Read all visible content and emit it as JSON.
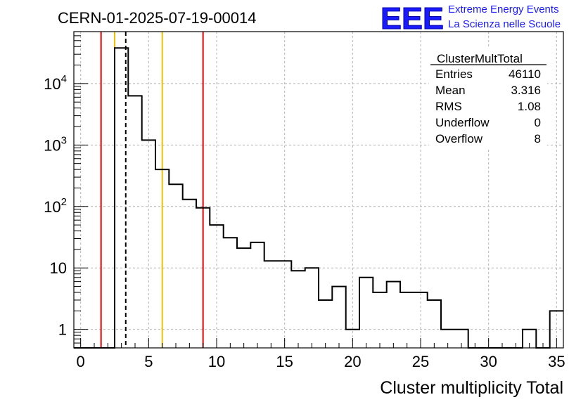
{
  "run_title": "CERN-01-2025-07-19-00014",
  "logo": {
    "mark": "EEE",
    "line1": "Extreme Energy Events",
    "line2": "La Scienza nelle Scuole",
    "color": "#1a1aff"
  },
  "stats": {
    "name": "ClusterMultTotal",
    "rows": [
      {
        "label": "Entries",
        "value": "46110"
      },
      {
        "label": "Mean",
        "value": "3.316"
      },
      {
        "label": "RMS",
        "value": "1.08"
      },
      {
        "label": "Underflow",
        "value": "0"
      },
      {
        "label": "Overflow",
        "value": "8"
      }
    ]
  },
  "chart_data": {
    "type": "histogram",
    "xlabel": "Cluster multiplicity Total",
    "ylabel": "",
    "xlim": [
      -0.5,
      35.5
    ],
    "ylim": [
      0.5,
      70000
    ],
    "yscale": "log",
    "grid": true,
    "bin_width": 1,
    "bin_centers": [
      0,
      1,
      2,
      3,
      4,
      5,
      6,
      7,
      8,
      9,
      10,
      11,
      12,
      13,
      14,
      15,
      16,
      17,
      18,
      19,
      20,
      21,
      22,
      23,
      24,
      25,
      26,
      27,
      28,
      29,
      30,
      31,
      32,
      33,
      34,
      35
    ],
    "counts": [
      0,
      0,
      0,
      38000,
      6300,
      1200,
      400,
      230,
      130,
      95,
      50,
      31,
      21,
      26,
      13,
      13,
      9,
      10,
      3,
      5,
      1,
      7,
      4,
      6,
      4,
      4,
      3,
      1,
      1,
      0,
      0,
      0,
      0,
      1,
      0,
      2
    ],
    "x_ticks": [
      0,
      5,
      10,
      15,
      20,
      25,
      30,
      35
    ],
    "y_ticks": [
      {
        "value": 1,
        "base": "1",
        "exp": ""
      },
      {
        "value": 10,
        "base": "10",
        "exp": ""
      },
      {
        "value": 100,
        "base": "10",
        "exp": "2"
      },
      {
        "value": 1000,
        "base": "10",
        "exp": "3"
      },
      {
        "value": 10000,
        "base": "10",
        "exp": "4"
      }
    ],
    "vertical_lines": [
      {
        "x": 1.5,
        "color": "#e00000",
        "style": "solid"
      },
      {
        "x": 2.5,
        "color": "#f0c000",
        "style": "solid"
      },
      {
        "x": 3.316,
        "color": "#000000",
        "style": "dashed"
      },
      {
        "x": 6.0,
        "color": "#f0c000",
        "style": "solid"
      },
      {
        "x": 9.0,
        "color": "#e00000",
        "style": "solid"
      }
    ],
    "colors": {
      "histogram": "#000000",
      "grid": "#b4b4b4"
    }
  }
}
